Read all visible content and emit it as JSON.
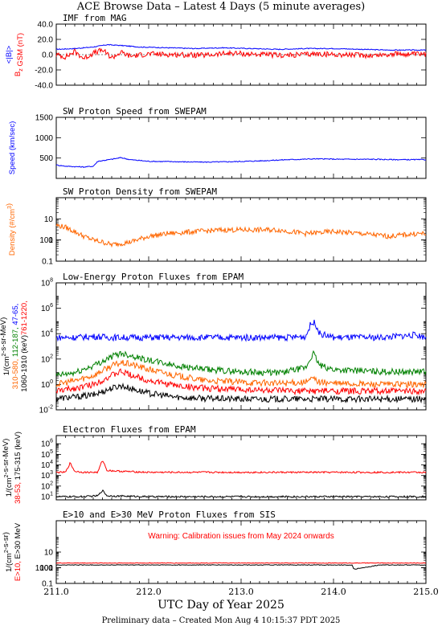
{
  "page": {
    "title": "ACE Browse Data – Latest 4 Days (5 minute averages)",
    "footer": "Preliminary data – Created Mon Aug  4 10:15:37 PDT 2025",
    "xlabel": "UTC Day of Year 2025"
  },
  "chart_data": [
    {
      "type": "line",
      "title": "IMF from MAG",
      "ylabels": [
        {
          "text": "<|B|>",
          "color": "#0000ff"
        },
        {
          "text": "B",
          "sub": "z",
          "text2": " GSM (nT)",
          "color": "#ff0000"
        }
      ],
      "ylim": [
        -40,
        40
      ],
      "yticks": [
        "-40.0",
        "-20.0",
        "0.0",
        "20.0",
        "40.0"
      ],
      "series": [
        {
          "color": "#0000ff",
          "x": [
            211.0,
            211.2,
            211.4,
            211.55,
            211.7,
            211.9,
            212.2,
            212.5,
            212.8,
            213.1,
            213.4,
            213.7,
            214.0,
            214.3,
            214.6,
            215.0
          ],
          "y": [
            7,
            8,
            10,
            13,
            12,
            10,
            9,
            8,
            9,
            8,
            7,
            8,
            8,
            7,
            6,
            6
          ]
        },
        {
          "color": "#ff0000",
          "x": [
            211.0,
            211.1,
            211.2,
            211.3,
            211.4,
            211.5,
            211.6,
            211.7,
            211.8,
            212.0,
            212.3,
            212.6,
            212.9,
            213.2,
            213.5,
            213.8,
            214.1,
            214.4,
            214.7,
            215.0
          ],
          "y": [
            0,
            -3,
            4,
            -5,
            2,
            6,
            -4,
            3,
            -2,
            1,
            0,
            -1,
            2,
            0,
            -1,
            1,
            0,
            -1,
            1,
            0
          ]
        }
      ]
    },
    {
      "type": "line",
      "title": "SW Proton Speed from SWEPAM",
      "ylabels": [
        {
          "text": "Speed (km/sec)",
          "color": "#0000ff"
        }
      ],
      "ylim": [
        0,
        1500
      ],
      "yticks": [
        "500",
        "1000",
        "1500"
      ],
      "series": [
        {
          "color": "#0000ff",
          "x": [
            211.0,
            211.1,
            211.2,
            211.3,
            211.4,
            211.45,
            211.6,
            211.7,
            211.8,
            212.0,
            212.3,
            212.6,
            212.9,
            213.2,
            213.5,
            213.8,
            214.1,
            214.4,
            214.7,
            215.0
          ],
          "y": [
            330,
            300,
            290,
            280,
            300,
            420,
            470,
            510,
            460,
            420,
            410,
            400,
            410,
            430,
            460,
            480,
            470,
            470,
            460,
            460
          ]
        }
      ]
    },
    {
      "type": "line",
      "title": "SW Proton Density from SWEPAM",
      "ylabels": [
        {
          "text": "Density (#/cm",
          "sup": "3",
          "text2": ")",
          "color": "#ff6600"
        }
      ],
      "yscale": "log",
      "ylim": [
        0.1,
        100
      ],
      "yticks": [
        "0.1",
        "1",
        "10",
        "100"
      ],
      "series": [
        {
          "color": "#ff6600",
          "x": [
            211.0,
            211.1,
            211.2,
            211.3,
            211.4,
            211.5,
            211.6,
            211.8,
            212.0,
            212.2,
            212.5,
            212.8,
            213.1,
            213.4,
            213.7,
            214.0,
            214.3,
            214.6,
            214.9,
            215.0
          ],
          "y": [
            5,
            4,
            2.5,
            1.5,
            1.0,
            0.8,
            0.6,
            0.8,
            1.5,
            2.0,
            2.5,
            3.0,
            3.0,
            3.0,
            2.0,
            2.5,
            2.0,
            1.5,
            2.0,
            2.0
          ]
        }
      ]
    },
    {
      "type": "line",
      "title": "Low-Energy Proton Fluxes from EPAM",
      "ylabels": [
        {
          "text": "1/(cm",
          "sup": "2",
          "text2": "-s-sr-MeV)",
          "color": "#000000"
        },
        {
          "text": "310-580, ",
          "color": "#ff6600"
        },
        {
          "text": "112-187, ",
          "color": "#008000"
        },
        {
          "text": "47-65, ",
          "color": "#0000ff"
        },
        {
          "text": "1060-1910 (keV)",
          "color": "#000000"
        },
        {
          "text": "761-1220, ",
          "color": "#ff0000"
        }
      ],
      "yscale": "log",
      "ylim": [
        0.01,
        100000000
      ],
      "yticks": [
        "10-2",
        "10 0",
        "10 2",
        "10 4",
        "10 6",
        "10 8"
      ],
      "series": [
        {
          "color": "#0000ff",
          "x": [
            211.0,
            211.2,
            211.4,
            211.6,
            212.0,
            212.5,
            213.0,
            213.5,
            213.7,
            213.75,
            213.8,
            213.85,
            214.0,
            214.5,
            214.9,
            215.0
          ],
          "y": [
            5000,
            5000,
            6000,
            5000,
            5000,
            5000,
            5000,
            5000,
            6000,
            50000,
            80000,
            10000,
            5000,
            5000,
            8000,
            5000
          ]
        },
        {
          "color": "#008000",
          "x": [
            211.0,
            211.2,
            211.4,
            211.6,
            211.7,
            211.8,
            212.0,
            212.3,
            212.6,
            213.0,
            213.4,
            213.7,
            213.78,
            213.85,
            214.0,
            214.5,
            215.0
          ],
          "y": [
            5,
            8,
            30,
            150,
            300,
            200,
            80,
            30,
            15,
            10,
            8,
            20,
            300,
            30,
            15,
            10,
            10
          ]
        },
        {
          "color": "#ff6600",
          "x": [
            211.0,
            211.2,
            211.4,
            211.6,
            211.7,
            211.8,
            212.0,
            212.3,
            212.6,
            213.0,
            213.4,
            213.7,
            213.78,
            213.85,
            214.0,
            214.5,
            215.0
          ],
          "y": [
            1,
            2,
            5,
            30,
            50,
            40,
            15,
            5,
            2,
            1.5,
            1.2,
            1.5,
            3,
            1.5,
            1.2,
            1.0,
            1.0
          ]
        },
        {
          "color": "#ff0000",
          "x": [
            211.0,
            211.2,
            211.4,
            211.6,
            211.7,
            211.8,
            212.0,
            212.3,
            212.6,
            213.0,
            213.5,
            214.0,
            214.5,
            215.0
          ],
          "y": [
            0.3,
            0.5,
            1,
            5,
            10,
            6,
            2,
            0.8,
            0.5,
            0.4,
            0.3,
            0.3,
            0.3,
            0.3
          ]
        },
        {
          "color": "#000000",
          "x": [
            211.0,
            211.2,
            211.4,
            211.6,
            211.7,
            211.8,
            212.0,
            212.3,
            212.6,
            213.0,
            213.5,
            214.0,
            214.5,
            215.0
          ],
          "y": [
            0.08,
            0.1,
            0.15,
            0.5,
            0.8,
            0.5,
            0.2,
            0.1,
            0.08,
            0.07,
            0.07,
            0.07,
            0.07,
            0.07
          ]
        }
      ]
    },
    {
      "type": "line",
      "title": "Electron Fluxes from EPAM",
      "ylabels": [
        {
          "text": "1/(cm",
          "sup": "2",
          "text2": "-s-sr-MeV)",
          "color": "#000000"
        },
        {
          "text": "38-53, ",
          "color": "#ff0000"
        },
        {
          "text": "175-315 (keV)",
          "color": "#000000"
        }
      ],
      "yscale": "log",
      "ylim": [
        5,
        6000000
      ],
      "yticks": [
        "10 1",
        "10 2",
        "10 3",
        "10 4",
        "10 5",
        "10 6"
      ],
      "series": [
        {
          "color": "#ff0000",
          "x": [
            211.0,
            211.1,
            211.15,
            211.2,
            211.3,
            211.45,
            211.5,
            211.55,
            211.7,
            212.0,
            212.5,
            213.0,
            213.5,
            214.0,
            214.5,
            215.0
          ],
          "y": [
            2000,
            2000,
            15000,
            2500,
            2000,
            2000,
            30000,
            3000,
            2500,
            2000,
            2000,
            2000,
            2000,
            2000,
            2000,
            2000
          ]
        },
        {
          "color": "#000000",
          "x": [
            211.0,
            211.3,
            211.45,
            211.5,
            211.55,
            212.0,
            212.5,
            213.0,
            213.5,
            214.0,
            214.5,
            215.0
          ],
          "y": [
            10,
            10,
            12,
            40,
            12,
            10,
            10,
            10,
            10,
            10,
            10,
            10
          ]
        }
      ]
    },
    {
      "type": "line",
      "title": "E>10 and E>30 MeV Proton Fluxes from SIS",
      "annotation": "Warning: Calibration issues from May 2024 onwards",
      "ylabels": [
        {
          "text": "1/(cm",
          "sup": "2",
          "text2": "-s-sr)",
          "color": "#000000"
        },
        {
          "text": "E>10, ",
          "color": "#ff0000"
        },
        {
          "text": "E>30 MeV",
          "color": "#000000"
        }
      ],
      "yscale": "log",
      "ylim": [
        0.1,
        1000
      ],
      "yticks": [
        "0.1",
        "1",
        "10",
        "100",
        "1000"
      ],
      "xticks": [
        "211.0",
        "212.0",
        "213.0",
        "214.0",
        "215.0"
      ],
      "xlim": [
        211.0,
        215.0
      ],
      "series": [
        {
          "color": "#ff0000",
          "x": [
            211.0,
            211.5,
            212.0,
            212.5,
            213.0,
            213.5,
            214.0,
            214.5,
            215.0
          ],
          "y": [
            2.0,
            2.0,
            2.0,
            2.0,
            2.0,
            2.0,
            2.0,
            2.0,
            2.0
          ]
        },
        {
          "color": "#000000",
          "x": [
            211.0,
            211.5,
            212.0,
            212.5,
            213.0,
            213.5,
            214.0,
            214.2,
            214.22,
            214.5,
            215.0
          ],
          "y": [
            1.5,
            1.5,
            1.5,
            1.5,
            1.5,
            1.5,
            1.5,
            1.5,
            0.8,
            1.5,
            1.5
          ]
        }
      ]
    }
  ]
}
